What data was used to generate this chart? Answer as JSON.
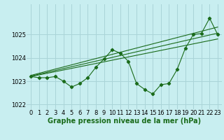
{
  "x": [
    0,
    1,
    2,
    3,
    4,
    5,
    6,
    7,
    8,
    9,
    10,
    11,
    12,
    13,
    14,
    15,
    16,
    17,
    18,
    19,
    20,
    21,
    22,
    23
  ],
  "y_main": [
    1023.2,
    1023.15,
    1023.15,
    1023.2,
    1023.0,
    1022.75,
    1022.9,
    1023.15,
    1023.6,
    1023.95,
    1024.35,
    1024.2,
    1023.85,
    1022.9,
    1022.65,
    1022.45,
    1022.85,
    1022.9,
    1023.5,
    1024.4,
    1025.0,
    1025.05,
    1025.7,
    1025.0
  ],
  "y_trend1": [
    1023.2,
    1023.27,
    1023.34,
    1023.41,
    1023.48,
    1023.55,
    1023.62,
    1023.69,
    1023.76,
    1023.83,
    1023.9,
    1023.97,
    1024.04,
    1024.11,
    1024.18,
    1024.25,
    1024.32,
    1024.39,
    1024.46,
    1024.53,
    1024.6,
    1024.67,
    1024.74,
    1024.81
  ],
  "y_trend2": [
    1023.22,
    1023.3,
    1023.38,
    1023.46,
    1023.54,
    1023.62,
    1023.7,
    1023.78,
    1023.86,
    1023.94,
    1024.02,
    1024.1,
    1024.18,
    1024.26,
    1024.34,
    1024.42,
    1024.5,
    1024.58,
    1024.66,
    1024.74,
    1024.82,
    1024.9,
    1024.98,
    1025.06
  ],
  "y_trend3": [
    1023.25,
    1023.34,
    1023.43,
    1023.52,
    1023.61,
    1023.7,
    1023.79,
    1023.88,
    1023.97,
    1024.06,
    1024.15,
    1024.24,
    1024.33,
    1024.42,
    1024.51,
    1024.6,
    1024.69,
    1024.78,
    1024.87,
    1024.96,
    1025.05,
    1025.14,
    1025.23,
    1025.32
  ],
  "line_color": "#1a6b1a",
  "bg_color": "#c8eef0",
  "grid_color": "#aad4d8",
  "xlabel": "Graphe pression niveau de la mer (hPa)",
  "ylim": [
    1021.8,
    1026.3
  ],
  "xlim": [
    -0.5,
    23.5
  ],
  "yticks": [
    1022,
    1023,
    1024,
    1025
  ],
  "xticks": [
    0,
    1,
    2,
    3,
    4,
    5,
    6,
    7,
    8,
    9,
    10,
    11,
    12,
    13,
    14,
    15,
    16,
    17,
    18,
    19,
    20,
    21,
    22,
    23
  ],
  "xlabel_fontsize": 7,
  "tick_fontsize": 6,
  "marker": "D",
  "markersize": 2.2
}
